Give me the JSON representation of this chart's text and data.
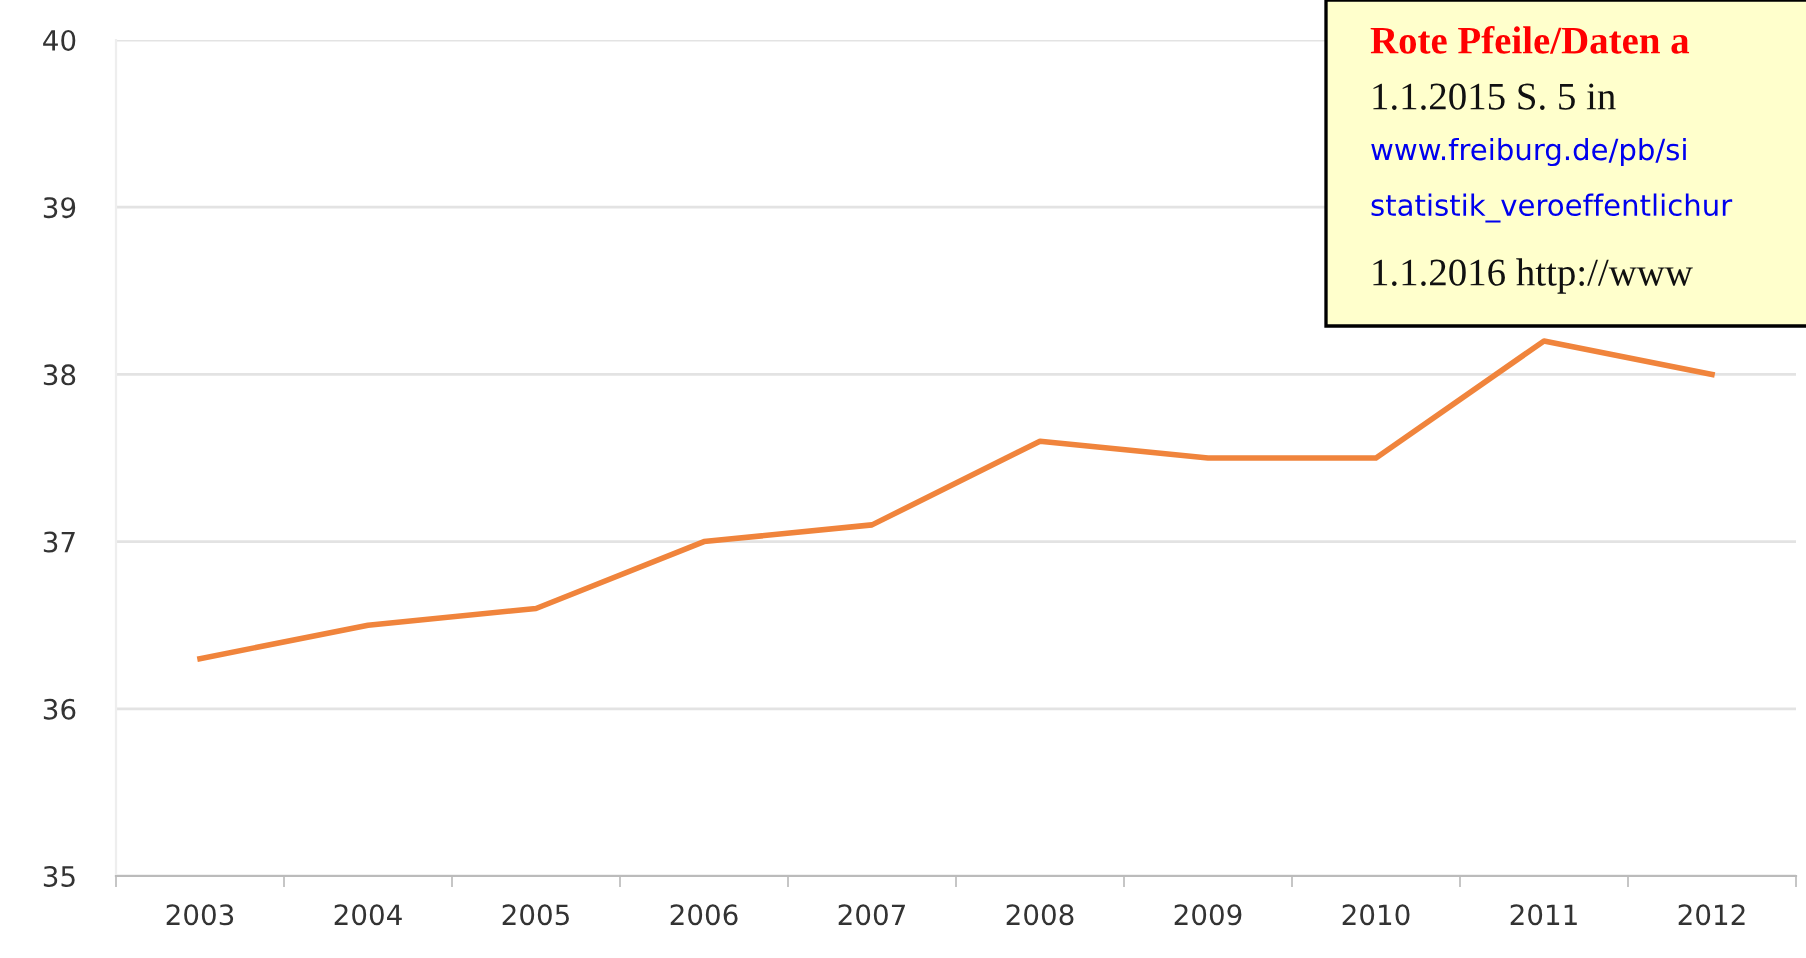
{
  "chart_data": {
    "type": "line",
    "categories": [
      "2003",
      "2004",
      "2005",
      "2006",
      "2007",
      "2008",
      "2009",
      "2010",
      "2011",
      "2012"
    ],
    "series": [
      {
        "color": "#f0843c",
        "values": [
          36.3,
          36.5,
          36.6,
          37.0,
          37.1,
          37.6,
          37.5,
          37.5,
          38.2,
          38.0
        ]
      }
    ],
    "ylim": [
      35,
      40
    ],
    "yticks": [
      35,
      36,
      37,
      38,
      39,
      40
    ],
    "grid": "y",
    "legend": false,
    "annotations": [
      "Rote Pfeile/Daten a",
      "1.1.2015 S. 5 in",
      "www.freiburg.de/pb/si",
      "statistik_veroeffentlichur",
      "1.1.2016 http://www"
    ]
  }
}
